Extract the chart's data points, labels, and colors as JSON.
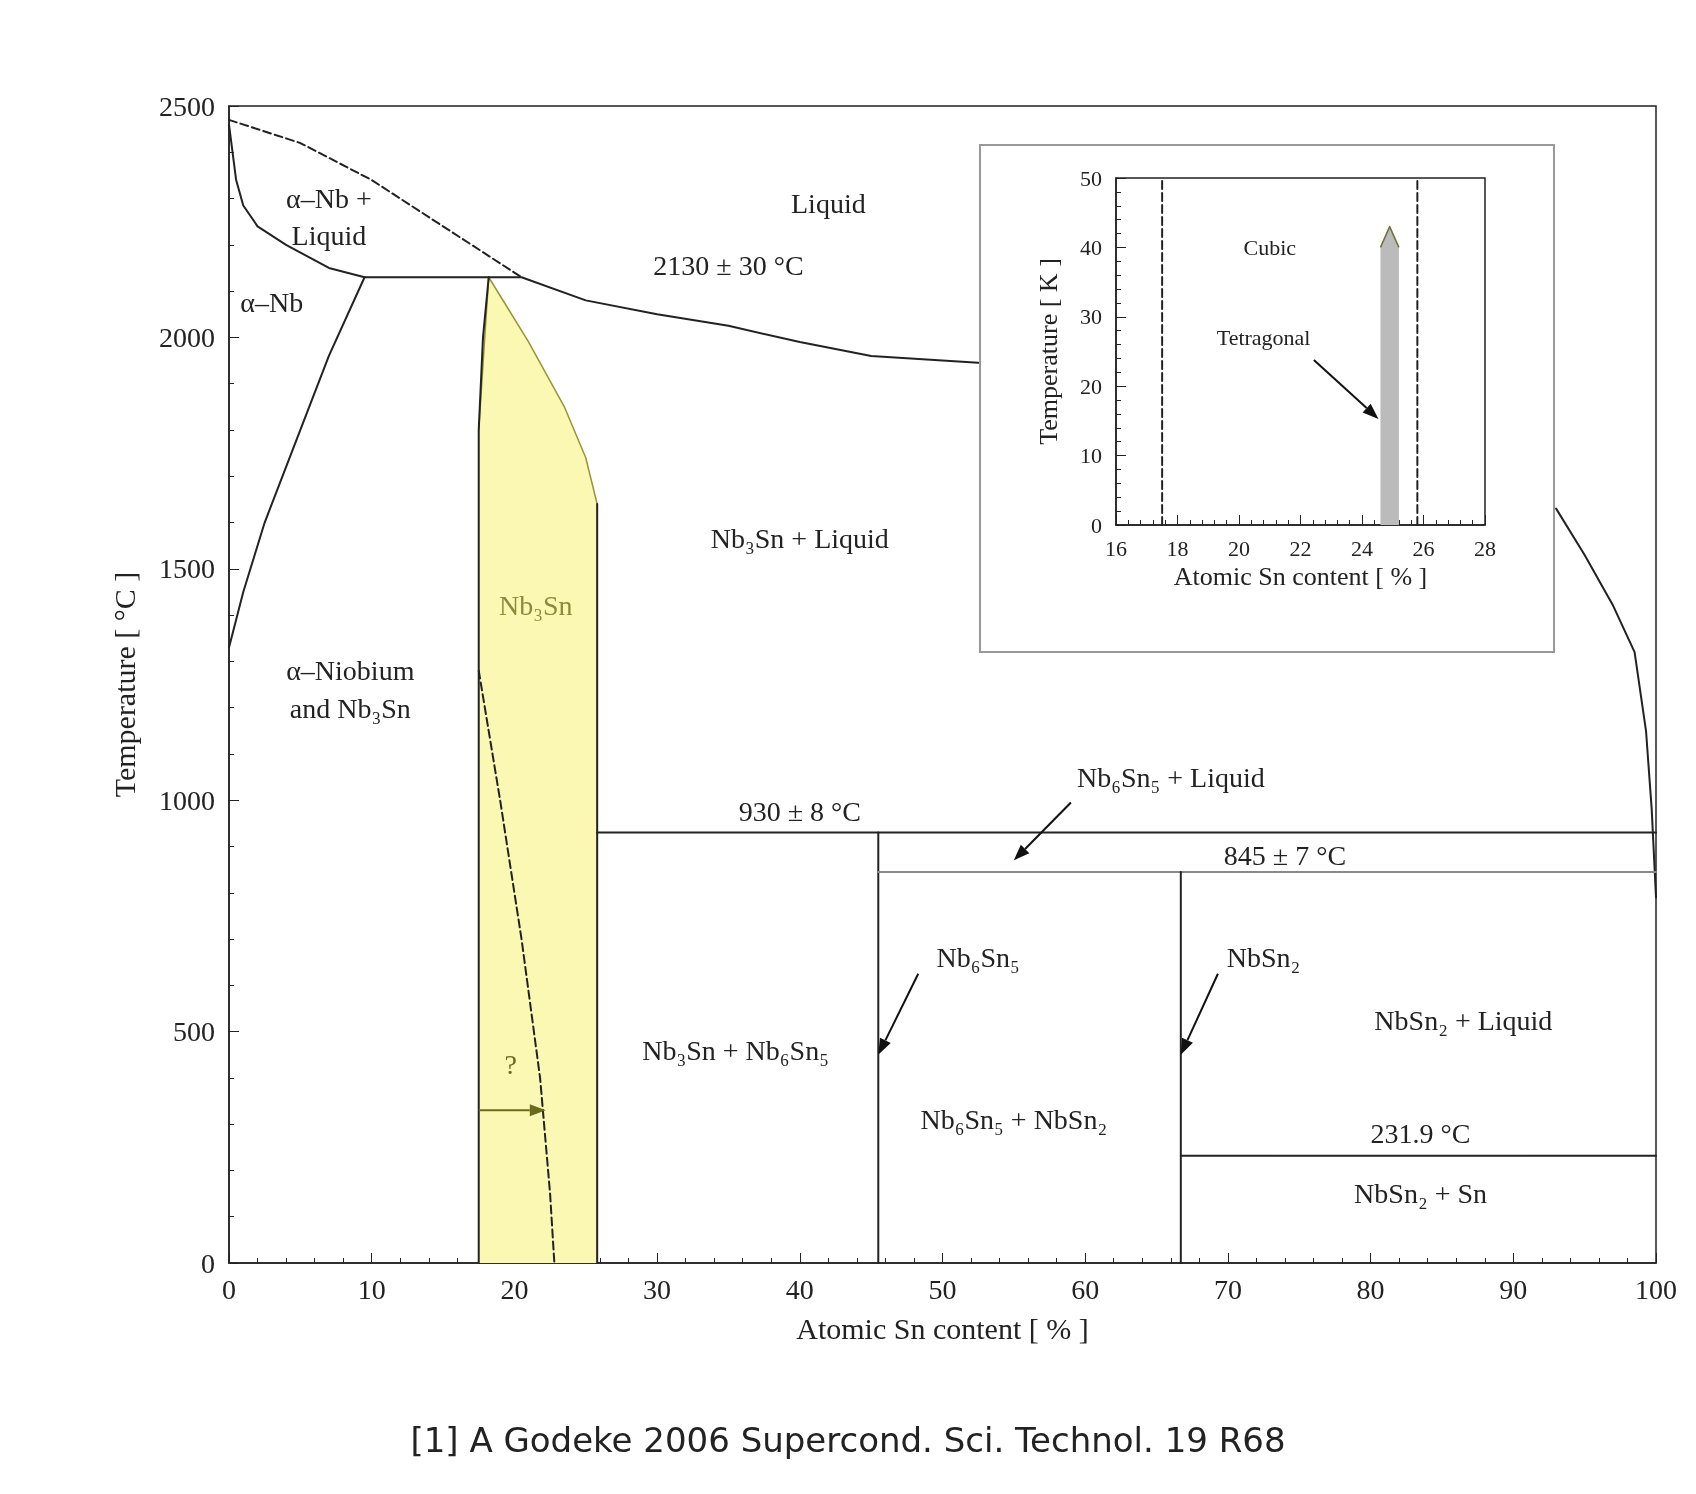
{
  "chart_data": [
    {
      "type": "line",
      "xlabel": "Atomic Sn content [ % ]",
      "ylabel": "Temperature [ °C ]",
      "xlim": [
        0,
        100
      ],
      "xticks": [
        0,
        10,
        20,
        30,
        40,
        50,
        60,
        70,
        80,
        90,
        100
      ],
      "ylim": [
        0,
        2500
      ],
      "yticks": [
        0,
        500,
        1000,
        1500,
        2000,
        2500
      ],
      "grid": false,
      "marker": "none",
      "series": [
        {
          "type": "area",
          "color": "#fbf8b4",
          "x": [
            17.5,
            18.2,
            19,
            21,
            23.5,
            25,
            25.8
          ],
          "values": [
            1800,
            2130,
            2090,
            1990,
            1850,
            1740,
            1640
          ]
        },
        {
          "color": "#222222",
          "line_style": "solid",
          "x": [
            0,
            0.5,
            1,
            2,
            4,
            7,
            9.5,
            20.5,
            25,
            30,
            35,
            40,
            45,
            52.5
          ],
          "values": [
            2460,
            2340,
            2285,
            2240,
            2200,
            2150,
            2130,
            2130,
            2080,
            2050,
            2025,
            1990,
            1960,
            1945
          ]
        },
        {
          "color": "#222222",
          "line_style": "solid",
          "x": [
            93,
            95,
            97,
            98.5,
            99.3,
            99.7,
            100
          ],
          "values": [
            1630,
            1530,
            1420,
            1320,
            1150,
            980,
            790
          ]
        },
        {
          "color": "#222222",
          "line_style": "solid",
          "x": [
            0,
            1,
            2.5,
            5,
            7,
            9.5
          ],
          "values": [
            1330,
            1450,
            1600,
            1800,
            1960,
            2130
          ]
        },
        {
          "color": "#222222",
          "line_style": "solid",
          "x": [
            17.5,
            17.5,
            17.8,
            18.2
          ],
          "values": [
            0,
            1800,
            2000,
            2130
          ]
        },
        {
          "color": "#222222",
          "line_style": "solid",
          "x": [
            25.8,
            25.8
          ],
          "values": [
            0,
            1640
          ]
        },
        {
          "color": "#222222",
          "line_style": "solid",
          "x": [
            25.8,
            100
          ],
          "values": [
            930,
            930
          ]
        },
        {
          "color": "#222222",
          "line_style": "solid",
          "x": [
            45.5,
            45.5
          ],
          "values": [
            0,
            930
          ]
        },
        {
          "color": "#888888",
          "line_style": "solid",
          "x": [
            45.5,
            100
          ],
          "values": [
            845,
            845
          ]
        },
        {
          "color": "#222222",
          "line_style": "solid",
          "x": [
            66.7,
            66.7
          ],
          "values": [
            0,
            845
          ]
        },
        {
          "color": "#222222",
          "line_style": "solid",
          "x": [
            66.7,
            100
          ],
          "values": [
            231.9,
            231.9
          ]
        },
        {
          "color": "#222222",
          "line_style": "dashed",
          "x": [
            0,
            5,
            10,
            15,
            20.5
          ],
          "values": [
            2470,
            2420,
            2340,
            2240,
            2130
          ]
        },
        {
          "color": "#222222",
          "line_style": "dashed",
          "x": [
            17.5,
            19,
            20.5,
            21.8,
            22.5,
            22.8
          ],
          "values": [
            1280,
            1000,
            700,
            400,
            150,
            0
          ]
        }
      ],
      "annotations": [
        "α–Nb +\nLiquid",
        "Liquid",
        "2130 ± 30 °C",
        "α–Nb",
        "Nb₃Sn + Liquid",
        "Nb₃Sn",
        "α–Niobium\nand Nb₃Sn",
        "Nb₆Sn₅ + Liquid",
        "930 ± 8 °C",
        "845 ± 7 °C",
        "Nb₆Sn₅",
        "NbSn₂",
        "NbSn₂ + Liquid",
        "Nb₃Sn + Nb₆Sn₅",
        "Nb₆Sn₅ + NbSn₂",
        "231.9 °C",
        "NbSn₂ + Sn",
        {
          "text": "?",
          "x": 22.2,
          "y": 330
        },
        "[1] A Godeke 2006 Supercond. Sci. Technol. 19 R68"
      ]
    },
    {
      "type": "line",
      "xlabel": "Atomic Sn content [ % ]",
      "ylabel": "Temperature [ K ]",
      "xlim": [
        16,
        28
      ],
      "xticks": [
        16,
        18,
        20,
        22,
        24,
        26,
        28
      ],
      "ylim": [
        0,
        50
      ],
      "yticks": [
        0,
        10,
        20,
        30,
        40,
        50
      ],
      "grid": false,
      "marker": "none",
      "series": [
        {
          "type": "area",
          "color": "#bbbbbb",
          "x": [
            24.6,
            24.9,
            25.2
          ],
          "values": [
            40,
            43,
            40
          ]
        },
        {
          "color": "#222222",
          "line_style": "dashed",
          "x": [
            17.5,
            17.5
          ],
          "values": [
            0,
            50
          ]
        },
        {
          "color": "#222222",
          "line_style": "dashed",
          "x": [
            25.8,
            25.8
          ],
          "values": [
            0,
            50
          ]
        }
      ],
      "annotations": [
        "Cubic",
        "Tetragonal"
      ]
    }
  ]
}
